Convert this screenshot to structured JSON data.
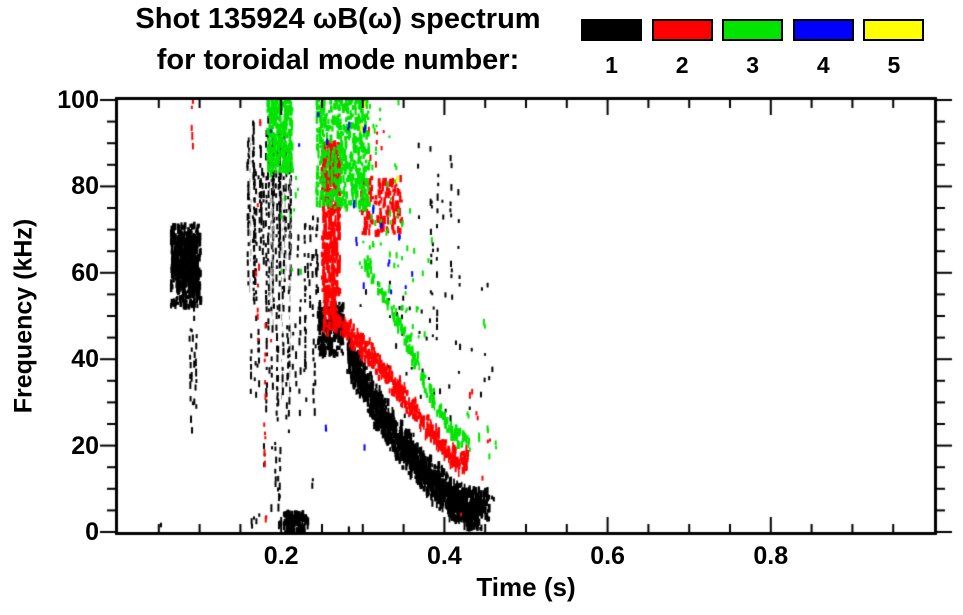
{
  "chart_data": {
    "type": "scatter",
    "title": "Shot 135924 ωB(ω) spectrum",
    "subtitle": "for toroidal mode number:",
    "shot_number": "135924",
    "xlabel": "Time (s)",
    "ylabel": "Frequency (kHz)",
    "xlim": [
      0,
      1.0
    ],
    "ylim": [
      0,
      100
    ],
    "grid": false,
    "x_ticks": {
      "major": [
        0.2,
        0.4,
        0.6,
        0.8
      ],
      "labels": [
        "0.2",
        "0.4",
        "0.6",
        "0.8"
      ],
      "minor_step": 0.05
    },
    "y_ticks": {
      "major": [
        0,
        20,
        40,
        60,
        80,
        100
      ],
      "labels": [
        "0",
        "20",
        "40",
        "60",
        "80",
        "100"
      ],
      "minor_step": 5
    },
    "legend": {
      "position": "top-right",
      "entries": [
        {
          "label": "1",
          "color": "#000000"
        },
        {
          "label": "2",
          "color": "#ff0000"
        },
        {
          "label": "3",
          "color": "#00e400"
        },
        {
          "label": "4",
          "color": "#0000ff"
        },
        {
          "label": "5",
          "color": "#ffff00"
        }
      ]
    },
    "modes": [
      {
        "n": 1,
        "color": "#000000"
      },
      {
        "n": 2,
        "color": "#ff0000"
      },
      {
        "n": 3,
        "color": "#00e400"
      },
      {
        "n": 4,
        "color": "#0000ff"
      },
      {
        "n": 5,
        "color": "#ffff00"
      }
    ],
    "features": [
      {
        "mode": 1,
        "kind": "cloud",
        "t": [
          0.065,
          0.102
        ],
        "f": [
          52,
          71
        ],
        "density": 320
      },
      {
        "mode": 1,
        "kind": "cloud",
        "t": [
          0.071,
          0.098
        ],
        "f": [
          56,
          68
        ],
        "density": 260
      },
      {
        "mode": 1,
        "kind": "vlines",
        "t": [
          0.079,
          0.098
        ],
        "f": [
          18,
          54
        ],
        "count": 5,
        "p": 0.55
      },
      {
        "mode": 1,
        "kind": "vlines",
        "t": [
          0.158,
          0.212
        ],
        "f": [
          48,
          101
        ],
        "count": 30,
        "p": 0.75
      },
      {
        "mode": 1,
        "kind": "vlines",
        "t": [
          0.16,
          0.213
        ],
        "f": [
          30,
          96
        ],
        "count": 7,
        "p": 0.92,
        "shade": "#9a9a9a",
        "w": 1
      },
      {
        "mode": 1,
        "kind": "vlines",
        "t": [
          0.163,
          0.245
        ],
        "f": [
          22,
          58
        ],
        "count": 22,
        "p": 0.55
      },
      {
        "mode": 1,
        "kind": "vlines",
        "t": [
          0.212,
          0.248
        ],
        "f": [
          50,
          78
        ],
        "count": 11,
        "p": 0.4
      },
      {
        "mode": 1,
        "kind": "vlines",
        "t": [
          0.16,
          0.24
        ],
        "f": [
          2,
          22
        ],
        "count": 7,
        "p": 0.35
      },
      {
        "mode": 1,
        "kind": "vline",
        "t": 0.197,
        "f": [
          0,
          13
        ],
        "p": 0.9
      },
      {
        "mode": 1,
        "kind": "cloud",
        "t": [
          0.203,
          0.233
        ],
        "f": [
          0,
          4.5
        ],
        "density": 110
      },
      {
        "mode": 1,
        "kind": "cloud",
        "t": [
          0.245,
          0.276
        ],
        "f": [
          41,
          53
        ],
        "density": 210
      },
      {
        "mode": 1,
        "kind": "band",
        "path": [
          [
            0.282,
            41
          ],
          [
            0.3,
            35
          ],
          [
            0.32,
            28
          ],
          [
            0.345,
            21
          ],
          [
            0.37,
            15
          ],
          [
            0.395,
            10
          ],
          [
            0.42,
            6
          ],
          [
            0.442,
            5
          ]
        ],
        "width": 5.5,
        "density": 1500
      },
      {
        "mode": 1,
        "kind": "specks",
        "t": [
          0.295,
          0.46
        ],
        "f": [
          26,
          58
        ],
        "count": 55
      },
      {
        "mode": 1,
        "kind": "vlines",
        "t": [
          0.358,
          0.42
        ],
        "f": [
          45,
          101
        ],
        "count": 7,
        "p": 0.3
      },
      {
        "mode": 1,
        "kind": "cloud",
        "t": [
          0.405,
          0.455
        ],
        "f": [
          3,
          10
        ],
        "density": 160
      },
      {
        "mode": 1,
        "kind": "specks",
        "points": [
          [
            0.051,
            2
          ],
          [
            0.284,
            1
          ],
          [
            0.445,
            1
          ],
          [
            0.46,
            8
          ],
          [
            0.168,
            3
          ],
          [
            0.163,
            2
          ],
          [
            0.174,
            4
          ]
        ]
      },
      {
        "mode": 2,
        "kind": "vline",
        "t": 0.091,
        "f": [
          88,
          100
        ],
        "p": 0.6
      },
      {
        "mode": 2,
        "kind": "vline",
        "t": 0.18,
        "f": [
          15,
          50
        ],
        "p": 0.5
      },
      {
        "mode": 2,
        "kind": "vline",
        "t": 0.172,
        "f": [
          40,
          78
        ],
        "p": 0.35
      },
      {
        "mode": 2,
        "kind": "specks",
        "points": [
          [
            0.176,
            95
          ],
          [
            0.18,
            3
          ],
          [
            0.168,
            60
          ],
          [
            0.186,
            44
          ]
        ]
      },
      {
        "mode": 2,
        "kind": "cloud",
        "t": [
          0.25,
          0.272
        ],
        "f": [
          55,
          90
        ],
        "density": 420
      },
      {
        "mode": 2,
        "kind": "cloud",
        "t": [
          0.252,
          0.268
        ],
        "f": [
          46,
          56
        ],
        "density": 70
      },
      {
        "mode": 2,
        "kind": "cloud",
        "t": [
          0.298,
          0.348
        ],
        "f": [
          69,
          82
        ],
        "density": 140
      },
      {
        "mode": 2,
        "kind": "specks",
        "t": [
          0.3,
          0.335
        ],
        "f": [
          84,
          94
        ],
        "count": 7
      },
      {
        "mode": 2,
        "kind": "band",
        "path": [
          [
            0.262,
            50
          ],
          [
            0.285,
            46
          ],
          [
            0.31,
            41
          ],
          [
            0.335,
            35
          ],
          [
            0.36,
            29
          ],
          [
            0.385,
            23
          ],
          [
            0.405,
            18
          ],
          [
            0.42,
            16
          ],
          [
            0.428,
            17.5
          ]
        ],
        "width": 3,
        "density": 480
      },
      {
        "mode": 2,
        "kind": "specks",
        "points": [
          [
            0.44,
            27
          ],
          [
            0.455,
            21
          ],
          [
            0.419,
            3.5
          ],
          [
            0.433,
            32
          ],
          [
            0.448,
            13
          ]
        ]
      },
      {
        "mode": 3,
        "kind": "cloud",
        "t": [
          0.183,
          0.214
        ],
        "f": [
          83,
          101
        ],
        "density": 300
      },
      {
        "mode": 3,
        "kind": "specks",
        "t": [
          0.195,
          0.235
        ],
        "f": [
          58,
          82
        ],
        "count": 10
      },
      {
        "mode": 3,
        "kind": "cloud",
        "t": [
          0.243,
          0.308
        ],
        "f": [
          75,
          101
        ],
        "density": 460
      },
      {
        "mode": 3,
        "kind": "specks",
        "t": [
          0.295,
          0.345
        ],
        "f": [
          60,
          100
        ],
        "count": 45
      },
      {
        "mode": 3,
        "kind": "specks",
        "t": [
          0.33,
          0.385
        ],
        "f": [
          45,
          75
        ],
        "count": 28
      },
      {
        "mode": 3,
        "kind": "band",
        "path": [
          [
            0.302,
            63
          ],
          [
            0.33,
            53
          ],
          [
            0.355,
            44
          ],
          [
            0.38,
            33
          ],
          [
            0.4,
            26
          ],
          [
            0.418,
            22
          ],
          [
            0.432,
            21
          ]
        ],
        "width": 2.5,
        "density": 170
      },
      {
        "mode": 3,
        "kind": "specks",
        "points": [
          [
            0.443,
            22
          ],
          [
            0.452,
            24
          ],
          [
            0.456,
            17
          ],
          [
            0.448,
            48
          ],
          [
            0.428,
            27
          ],
          [
            0.462,
            20
          ]
        ]
      },
      {
        "mode": 4,
        "kind": "specks",
        "points": [
          [
            0.186,
            93
          ],
          [
            0.221,
            90
          ],
          [
            0.247,
            97
          ],
          [
            0.255,
            90
          ],
          [
            0.283,
            94
          ],
          [
            0.302,
            93
          ],
          [
            0.29,
            76
          ],
          [
            0.293,
            67
          ],
          [
            0.302,
            57
          ],
          [
            0.313,
            75
          ],
          [
            0.323,
            71
          ],
          [
            0.333,
            62
          ],
          [
            0.345,
            68
          ],
          [
            0.352,
            57
          ],
          [
            0.256,
            24
          ],
          [
            0.301,
            20
          ],
          [
            0.336,
            55
          ],
          [
            0.362,
            60
          ]
        ]
      },
      {
        "mode": 5,
        "kind": "specks",
        "points": [
          [
            0.3,
            93.5
          ],
          [
            0.343,
            81.5
          ],
          [
            0.302,
            99
          ]
        ]
      }
    ]
  }
}
